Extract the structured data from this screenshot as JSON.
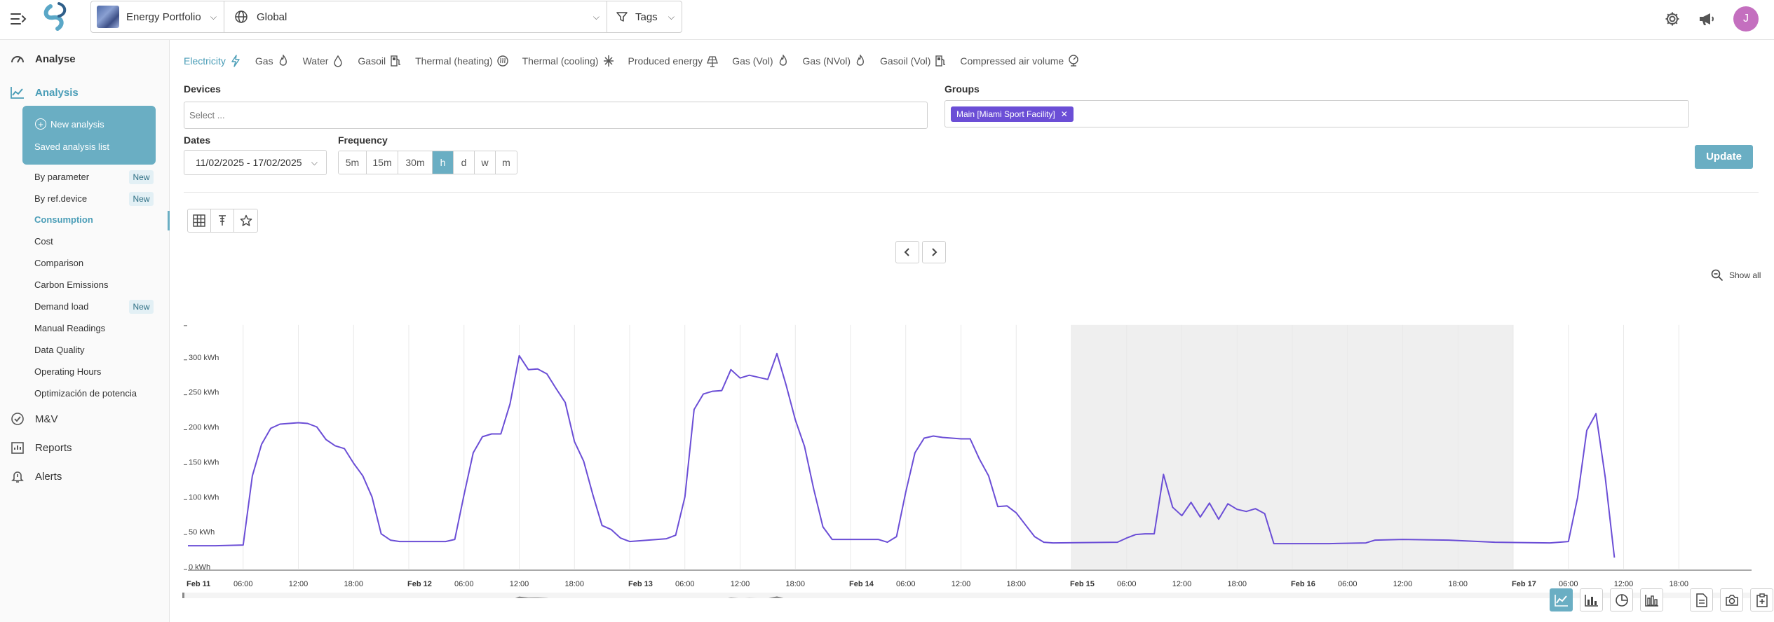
{
  "header": {
    "portfolio": "Energy Portfolio",
    "scope": "Global",
    "tags_label": "Tags",
    "avatar_initial": "J"
  },
  "sidebar": {
    "analyse_label": "Analyse",
    "analysis_label": "Analysis",
    "new_analysis_label": "New analysis",
    "saved_analysis_label": "Saved analysis list",
    "items": [
      {
        "label": "By parameter",
        "badge": "New"
      },
      {
        "label": "By ref.device",
        "badge": "New"
      },
      {
        "label": "Consumption",
        "badge": ""
      },
      {
        "label": "Cost",
        "badge": ""
      },
      {
        "label": "Comparison",
        "badge": ""
      },
      {
        "label": "Carbon Emissions",
        "badge": ""
      },
      {
        "label": "Demand load",
        "badge": "New"
      },
      {
        "label": "Manual Readings",
        "badge": ""
      },
      {
        "label": "Data Quality",
        "badge": ""
      },
      {
        "label": "Operating Hours",
        "badge": ""
      },
      {
        "label": "Optimización de potencia",
        "badge": ""
      }
    ],
    "mv_label": "M&V",
    "reports_label": "Reports",
    "alerts_label": "Alerts"
  },
  "energy_tabs": [
    {
      "label": "Electricity",
      "icon": "bolt-icon",
      "active": true
    },
    {
      "label": "Gas",
      "icon": "flame-icon"
    },
    {
      "label": "Water",
      "icon": "drop-icon"
    },
    {
      "label": "Gasoil",
      "icon": "fuel-pump-icon"
    },
    {
      "label": "Thermal (heating)",
      "icon": "heating-icon"
    },
    {
      "label": "Thermal (cooling)",
      "icon": "snowflake-icon"
    },
    {
      "label": "Produced energy",
      "icon": "solar-panel-icon"
    },
    {
      "label": "Gas (Vol)",
      "icon": "flame-icon"
    },
    {
      "label": "Gas (NVol)",
      "icon": "flame-icon"
    },
    {
      "label": "Gasoil (Vol)",
      "icon": "fuel-pump-icon"
    },
    {
      "label": "Compressed air volume",
      "icon": "air-meter-icon"
    }
  ],
  "filters": {
    "devices_label": "Devices",
    "devices_placeholder": "Select ...",
    "groups_label": "Groups",
    "group_chip": "Main [Miami Sport Facility]",
    "dates_label": "Dates",
    "dates_value": "11/02/2025 - 17/02/2025",
    "frequency_label": "Frequency",
    "frequency_options": [
      "5m",
      "15m",
      "30m",
      "h",
      "d",
      "w",
      "m"
    ],
    "frequency_selected": "h",
    "update_label": "Update"
  },
  "chart": {
    "show_all_label": "Show all"
  },
  "chart_data": {
    "type": "line",
    "unit": "kWh",
    "ylim": [
      0,
      350
    ],
    "y_ticks": [
      "0 kWh",
      "50 kWh",
      "100 kWh",
      "150 kWh",
      "200 kWh",
      "250 kWh",
      "300 kWh"
    ],
    "x_ticks": [
      "Feb 11",
      "06:00",
      "12:00",
      "18:00",
      "Feb 12",
      "06:00",
      "12:00",
      "18:00",
      "Feb 13",
      "06:00",
      "12:00",
      "18:00",
      "Feb 14",
      "06:00",
      "12:00",
      "18:00",
      "Feb 15",
      "06:00",
      "12:00",
      "18:00",
      "Feb 16",
      "06:00",
      "12:00",
      "18:00",
      "Feb 17",
      "06:00",
      "12:00",
      "18:00"
    ],
    "x_bold": [
      "Feb 11",
      "Feb 12",
      "Feb 13",
      "Feb 14",
      "Feb 15",
      "Feb 16",
      "Feb 17"
    ],
    "x_range_hours": [
      0,
      168
    ],
    "weekend_shade_hours": [
      96,
      144
    ],
    "line_color": "#6b4ed6",
    "series": [
      {
        "points": [
          [
            0,
            33
          ],
          [
            3,
            33
          ],
          [
            6,
            34
          ],
          [
            7,
            133
          ],
          [
            8,
            178
          ],
          [
            9,
            201
          ],
          [
            10,
            207
          ],
          [
            12,
            209
          ],
          [
            13,
            208
          ],
          [
            14,
            203
          ],
          [
            15,
            185
          ],
          [
            16,
            176
          ],
          [
            17,
            172
          ],
          [
            18,
            151
          ],
          [
            19,
            133
          ],
          [
            20,
            103
          ],
          [
            21,
            50
          ],
          [
            22,
            41
          ],
          [
            23,
            39
          ],
          [
            25,
            39
          ],
          [
            28,
            39
          ],
          [
            29,
            42
          ],
          [
            30,
            106
          ],
          [
            31,
            166
          ],
          [
            32,
            189
          ],
          [
            33,
            193
          ],
          [
            34,
            193
          ],
          [
            35,
            236
          ],
          [
            36,
            305
          ],
          [
            37,
            285
          ],
          [
            38,
            286
          ],
          [
            39,
            279
          ],
          [
            40,
            258
          ],
          [
            41,
            238
          ],
          [
            42,
            182
          ],
          [
            43,
            154
          ],
          [
            44,
            106
          ],
          [
            45,
            62
          ],
          [
            46,
            56
          ],
          [
            47,
            44
          ],
          [
            48,
            39
          ],
          [
            51,
            42
          ],
          [
            52,
            43
          ],
          [
            53,
            48
          ],
          [
            54,
            103
          ],
          [
            55,
            228
          ],
          [
            56,
            250
          ],
          [
            57,
            254
          ],
          [
            58,
            255
          ],
          [
            59,
            285
          ],
          [
            60,
            273
          ],
          [
            61,
            277
          ],
          [
            63,
            271
          ],
          [
            64,
            308
          ],
          [
            65,
            263
          ],
          [
            66,
            213
          ],
          [
            67,
            175
          ],
          [
            68,
            114
          ],
          [
            69,
            60
          ],
          [
            70,
            42
          ],
          [
            73,
            42
          ],
          [
            75,
            42
          ],
          [
            76,
            38
          ],
          [
            77,
            46
          ],
          [
            78,
            110
          ],
          [
            79,
            166
          ],
          [
            80,
            187
          ],
          [
            81,
            190
          ],
          [
            82,
            188
          ],
          [
            84,
            186
          ],
          [
            85,
            186
          ],
          [
            86,
            157
          ],
          [
            87,
            133
          ],
          [
            88,
            89
          ],
          [
            89,
            90
          ],
          [
            90,
            80
          ],
          [
            91,
            63
          ],
          [
            92,
            46
          ],
          [
            93,
            38
          ],
          [
            94,
            37
          ],
          [
            101,
            38
          ],
          [
            102,
            44
          ],
          [
            103,
            49
          ],
          [
            104,
            50
          ],
          [
            105,
            50
          ],
          [
            106,
            135
          ],
          [
            107,
            88
          ],
          [
            108,
            76
          ],
          [
            109,
            95
          ],
          [
            110,
            74
          ],
          [
            111,
            94
          ],
          [
            112,
            71
          ],
          [
            113,
            93
          ],
          [
            114,
            85
          ],
          [
            115,
            82
          ],
          [
            116,
            86
          ],
          [
            117,
            79
          ],
          [
            118,
            36
          ],
          [
            124,
            36
          ],
          [
            128,
            37
          ],
          [
            129,
            41
          ],
          [
            132,
            42
          ],
          [
            137,
            41
          ],
          [
            142,
            38
          ],
          [
            148,
            37
          ],
          [
            150,
            39
          ],
          [
            151,
            102
          ],
          [
            152,
            198
          ],
          [
            153,
            222
          ],
          [
            154,
            131
          ],
          [
            155,
            16
          ]
        ]
      }
    ]
  }
}
